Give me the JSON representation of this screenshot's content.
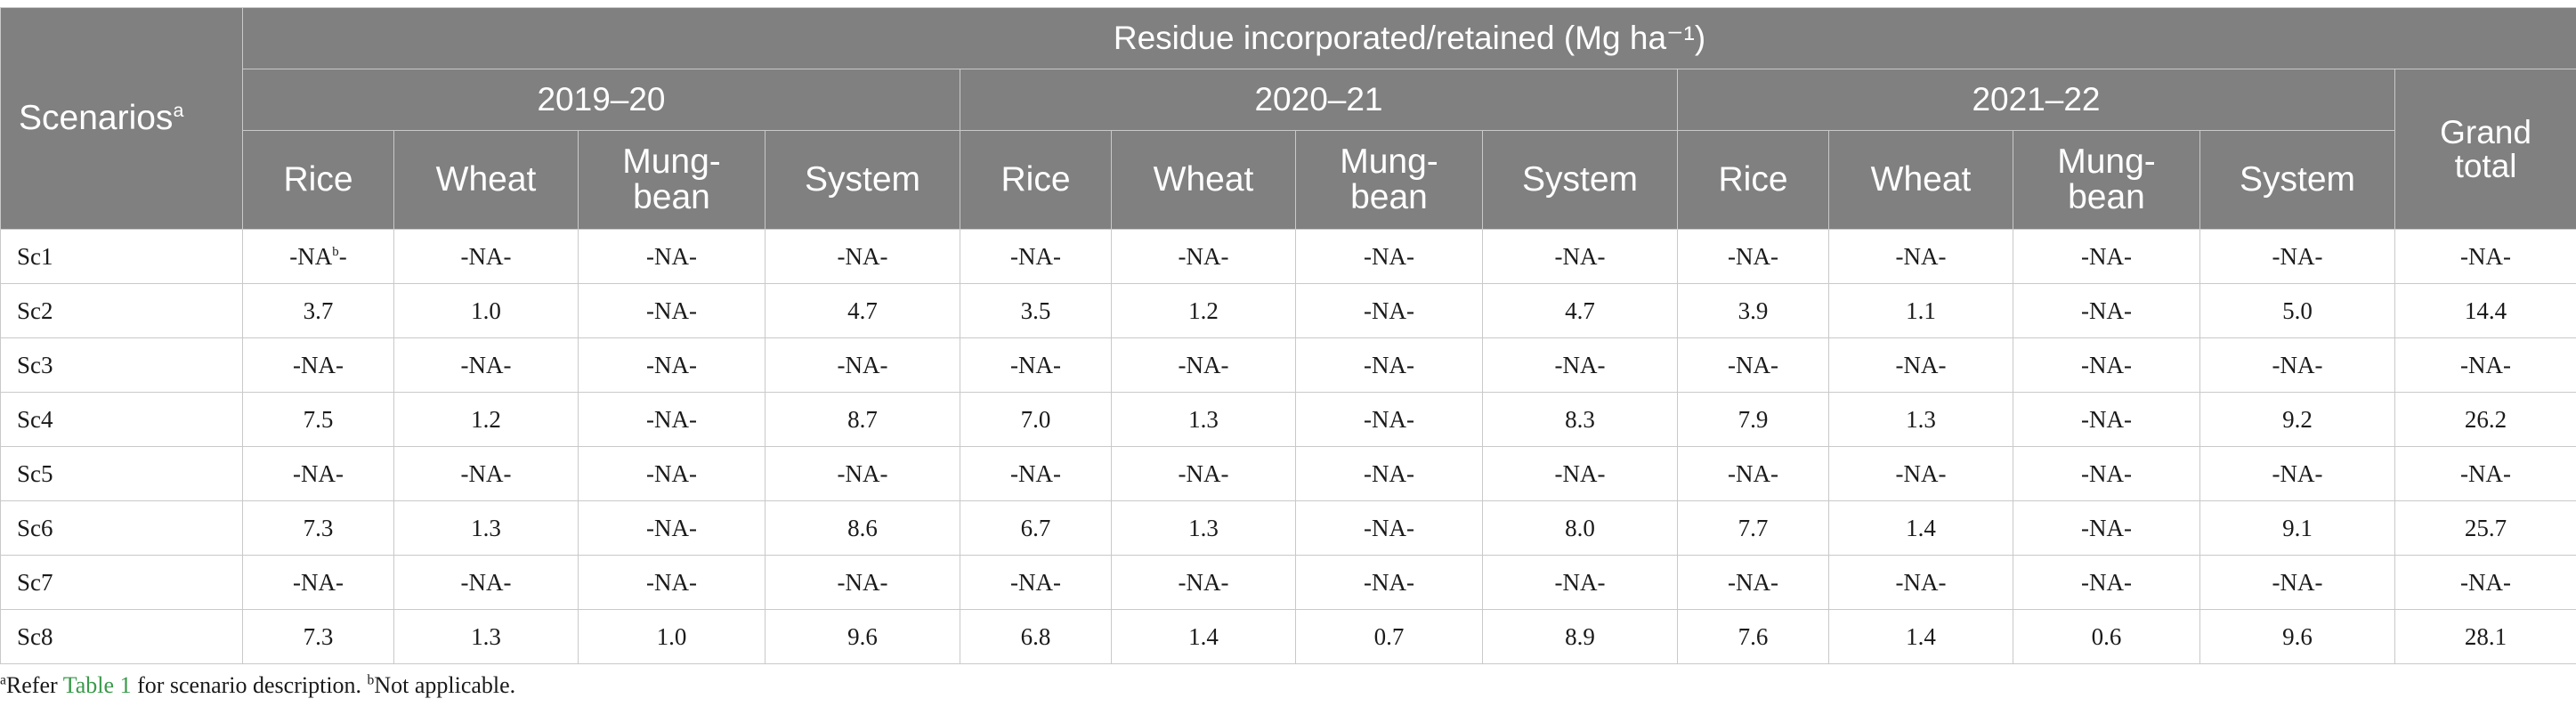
{
  "header": {
    "scenarios_label": "Scenarios",
    "scenarios_sup": "a",
    "group_label": "Residue incorporated/retained (Mg ha⁻¹)",
    "years": [
      "2019–20",
      "2020–21",
      "2021–22"
    ],
    "crops": [
      "Rice",
      "Wheat",
      "Mung-bean",
      "System"
    ],
    "grand_total": "Grand total"
  },
  "rows": [
    {
      "scenario": "Sc1",
      "values": [
        "-NA",
        "-NA-",
        "-NA-",
        "-NA-",
        "-NA-",
        "-NA-",
        "-NA-",
        "-NA-",
        "-NA-",
        "-NA-",
        "-NA-",
        "-NA-",
        "-NA-"
      ],
      "first_sup": "b",
      "first_suffix": "-"
    },
    {
      "scenario": "Sc2",
      "values": [
        "3.7",
        "1.0",
        "-NA-",
        "4.7",
        "3.5",
        "1.2",
        "-NA-",
        "4.7",
        "3.9",
        "1.1",
        "-NA-",
        "5.0",
        "14.4"
      ]
    },
    {
      "scenario": "Sc3",
      "values": [
        "-NA-",
        "-NA-",
        "-NA-",
        "-NA-",
        "-NA-",
        "-NA-",
        "-NA-",
        "-NA-",
        "-NA-",
        "-NA-",
        "-NA-",
        "-NA-",
        "-NA-"
      ]
    },
    {
      "scenario": "Sc4",
      "values": [
        "7.5",
        "1.2",
        "-NA-",
        "8.7",
        "7.0",
        "1.3",
        "-NA-",
        "8.3",
        "7.9",
        "1.3",
        "-NA-",
        "9.2",
        "26.2"
      ]
    },
    {
      "scenario": "Sc5",
      "values": [
        "-NA-",
        "-NA-",
        "-NA-",
        "-NA-",
        "-NA-",
        "-NA-",
        "-NA-",
        "-NA-",
        "-NA-",
        "-NA-",
        "-NA-",
        "-NA-",
        "-NA-"
      ]
    },
    {
      "scenario": "Sc6",
      "values": [
        "7.3",
        "1.3",
        "-NA-",
        "8.6",
        "6.7",
        "1.3",
        "-NA-",
        "8.0",
        "7.7",
        "1.4",
        "-NA-",
        "9.1",
        "25.7"
      ]
    },
    {
      "scenario": "Sc7",
      "values": [
        "-NA-",
        "-NA-",
        "-NA-",
        "-NA-",
        "-NA-",
        "-NA-",
        "-NA-",
        "-NA-",
        "-NA-",
        "-NA-",
        "-NA-",
        "-NA-",
        "-NA-"
      ]
    },
    {
      "scenario": "Sc8",
      "values": [
        "7.3",
        "1.3",
        "1.0",
        "9.6",
        "6.8",
        "1.4",
        "0.7",
        "8.9",
        "7.6",
        "1.4",
        "0.6",
        "9.6",
        "28.1"
      ]
    }
  ],
  "footnote": {
    "a_marker": "a",
    "a_prefix": "Refer ",
    "a_link": "Table 1",
    "a_suffix": " for scenario description. ",
    "b_marker": "b",
    "b_text": "Not applicable."
  },
  "colors": {
    "header_bg": "#808080",
    "header_text": "#ffffff",
    "link": "#3a9a4a"
  }
}
